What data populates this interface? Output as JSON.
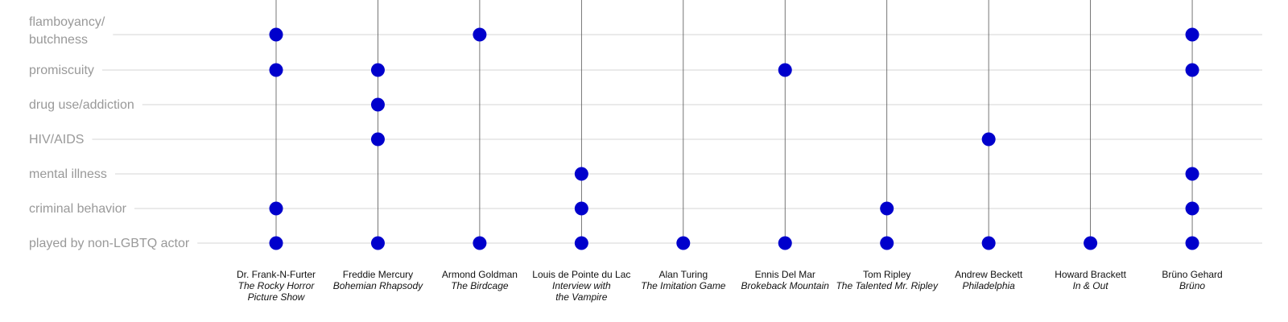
{
  "chart_data": {
    "type": "scatter",
    "title": "",
    "xlabel": "",
    "ylabel": "",
    "grid": true,
    "legend": "none",
    "rows": [
      [
        "flamboyancy/",
        "butchness"
      ],
      [
        "promiscuity"
      ],
      [
        "drug use/addiction"
      ],
      [
        "HIV/AIDS"
      ],
      [
        "mental illness"
      ],
      [
        "criminal behavior"
      ],
      [
        "played by non-LGBTQ actor"
      ]
    ],
    "columns": [
      {
        "character": "Dr. Frank-N-Furter",
        "film": [
          "The Rocky Horror",
          "Picture Show"
        ]
      },
      {
        "character": "Freddie Mercury",
        "film": [
          "Bohemian Rhapsody"
        ]
      },
      {
        "character": "Armond Goldman",
        "film": [
          "The Birdcage"
        ]
      },
      {
        "character": "Louis de Pointe du Lac",
        "film": [
          "Interview with",
          "the Vampire"
        ]
      },
      {
        "character": "Alan Turing",
        "film": [
          "The Imitation Game"
        ]
      },
      {
        "character": "Ennis Del Mar",
        "film": [
          "Brokeback Mountain"
        ]
      },
      {
        "character": "Tom Ripley",
        "film": [
          "The Talented Mr. Ripley"
        ]
      },
      {
        "character": "Andrew Beckett",
        "film": [
          "Philadelphia"
        ]
      },
      {
        "character": "Howard Brackett",
        "film": [
          "In & Out"
        ]
      },
      {
        "character": "Brüno Gehard",
        "film": [
          "Brüno"
        ]
      }
    ],
    "points": [
      [
        0,
        0
      ],
      [
        2,
        0
      ],
      [
        9,
        0
      ],
      [
        0,
        1
      ],
      [
        1,
        1
      ],
      [
        5,
        1
      ],
      [
        9,
        1
      ],
      [
        1,
        2
      ],
      [
        1,
        3
      ],
      [
        7,
        3
      ],
      [
        3,
        4
      ],
      [
        9,
        4
      ],
      [
        0,
        5
      ],
      [
        3,
        5
      ],
      [
        6,
        5
      ],
      [
        9,
        5
      ],
      [
        0,
        6
      ],
      [
        1,
        6
      ],
      [
        2,
        6
      ],
      [
        3,
        6
      ],
      [
        4,
        6
      ],
      [
        5,
        6
      ],
      [
        6,
        6
      ],
      [
        7,
        6
      ],
      [
        8,
        6
      ],
      [
        9,
        6
      ]
    ],
    "colors": {
      "dot": "#0000cc",
      "hline": "#d6d6d6",
      "vline": "#555555",
      "label": "#999999",
      "text": "#111111"
    }
  }
}
